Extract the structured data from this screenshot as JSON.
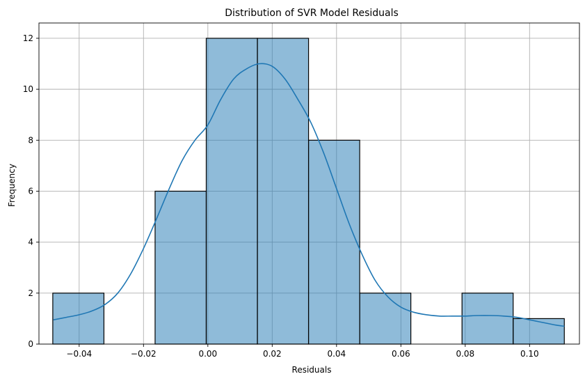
{
  "chart_data": {
    "type": "bar",
    "title": "Distribution of SVR Model Residuals",
    "xlabel": "Residuals",
    "ylabel": "Frequency",
    "xlim": [
      -0.0525,
      0.1155
    ],
    "ylim": [
      0,
      12.6
    ],
    "grid": true,
    "bar_color": "#1f77b4",
    "bar_alpha": 0.5,
    "kde_color": "#1f77b4",
    "x_ticks": [
      -0.04,
      -0.02,
      0.0,
      0.02,
      0.04,
      0.06,
      0.08,
      0.1
    ],
    "x_tick_labels": [
      "−0.04",
      "−0.02",
      "0.00",
      "0.02",
      "0.04",
      "0.06",
      "0.08",
      "0.10"
    ],
    "y_ticks": [
      0,
      2,
      4,
      6,
      8,
      10,
      12
    ],
    "y_tick_labels": [
      "0",
      "2",
      "4",
      "6",
      "8",
      "10",
      "12"
    ],
    "bins": [
      {
        "x0": -0.0482,
        "x1": -0.0323,
        "count": 2
      },
      {
        "x0": -0.0323,
        "x1": -0.0164,
        "count": 0
      },
      {
        "x0": -0.0164,
        "x1": -0.0005,
        "count": 6
      },
      {
        "x0": -0.0005,
        "x1": 0.0154,
        "count": 12
      },
      {
        "x0": 0.0154,
        "x1": 0.0313,
        "count": 12
      },
      {
        "x0": 0.0313,
        "x1": 0.0472,
        "count": 8
      },
      {
        "x0": 0.0472,
        "x1": 0.0631,
        "count": 2
      },
      {
        "x0": 0.0631,
        "x1": 0.079,
        "count": 0
      },
      {
        "x0": 0.079,
        "x1": 0.0949,
        "count": 2
      },
      {
        "x0": 0.0949,
        "x1": 0.1108,
        "count": 1
      }
    ],
    "kde": {
      "x": [
        -0.048,
        -0.044,
        -0.04,
        -0.036,
        -0.032,
        -0.028,
        -0.024,
        -0.02,
        -0.016,
        -0.012,
        -0.008,
        -0.004,
        0.0,
        0.004,
        0.008,
        0.012,
        0.016,
        0.02,
        0.024,
        0.028,
        0.032,
        0.036,
        0.04,
        0.044,
        0.048,
        0.052,
        0.056,
        0.06,
        0.064,
        0.068,
        0.072,
        0.076,
        0.08,
        0.084,
        0.088,
        0.092,
        0.096,
        0.1,
        0.104,
        0.108,
        0.1108
      ],
      "y": [
        0.95,
        1.05,
        1.15,
        1.3,
        1.55,
        2.0,
        2.75,
        3.75,
        4.9,
        6.1,
        7.2,
        8.0,
        8.6,
        9.6,
        10.4,
        10.8,
        11.0,
        10.9,
        10.4,
        9.6,
        8.7,
        7.5,
        6.1,
        4.7,
        3.5,
        2.5,
        1.85,
        1.45,
        1.25,
        1.15,
        1.1,
        1.1,
        1.1,
        1.12,
        1.12,
        1.1,
        1.05,
        0.95,
        0.85,
        0.75,
        0.7
      ]
    }
  }
}
